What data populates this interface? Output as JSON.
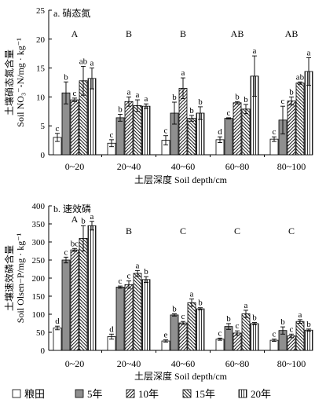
{
  "legend": [
    "粮田",
    "5年",
    "10年",
    "15年",
    "20年"
  ],
  "chart_data": [
    {
      "type": "bar",
      "title": "a. 硝态氮",
      "xlabel": "土层深度 Soil depth/cm",
      "ylabel": [
        "土壤硝态氮含量",
        "Soil NO₃⁻-N/mg · kg⁻¹"
      ],
      "categories": [
        "0~20",
        "20~40",
        "40~60",
        "60~80",
        "80~100"
      ],
      "ylim": [
        0,
        25
      ],
      "yticks": [
        0,
        5,
        10,
        15,
        20,
        25
      ],
      "grid": false,
      "legend_position": "bottom",
      "group_letters": [
        "A",
        "B",
        "B",
        "AB",
        "AB"
      ],
      "series": [
        {
          "name": "粮田",
          "color": "#ffffff",
          "pattern": "none",
          "values": [
            3.0,
            2.0,
            2.5,
            2.6,
            2.7
          ],
          "errors": [
            0.7,
            0.6,
            0.8,
            0.5,
            0.4
          ],
          "letters": [
            "c",
            "c",
            "c",
            "d",
            "c"
          ]
        },
        {
          "name": "5年",
          "color": "#8f8f8f",
          "pattern": "none",
          "values": [
            10.7,
            6.4,
            7.2,
            6.3,
            6.0
          ],
          "errors": [
            1.9,
            0.6,
            1.9,
            0.1,
            2.4
          ],
          "letters": [
            "b",
            "b",
            "b",
            "c",
            "c"
          ]
        },
        {
          "name": "10年",
          "color": "#ffffff",
          "pattern": "hatch-forward",
          "values": [
            9.5,
            9.2,
            11.5,
            9.0,
            9.3
          ],
          "errors": [
            0.3,
            0.8,
            1.8,
            0.2,
            0.7
          ],
          "letters": [
            "c",
            "a",
            "a",
            "b",
            "b"
          ]
        },
        {
          "name": "15年",
          "color": "#ffffff",
          "pattern": "hatch-backward",
          "values": [
            12.8,
            8.5,
            6.3,
            7.9,
            12.4
          ],
          "errors": [
            2.5,
            1.0,
            0.5,
            0.8,
            0.2
          ],
          "letters": [
            "ab",
            "a",
            "b",
            "b",
            "ab"
          ]
        },
        {
          "name": "20年",
          "color": "#ffffff",
          "pattern": "vertical-lines",
          "values": [
            13.2,
            8.4,
            7.2,
            13.6,
            14.4
          ],
          "errors": [
            1.8,
            0.4,
            1.1,
            3.5,
            2.4
          ],
          "letters": [
            "a",
            "a",
            "b",
            "a",
            "a"
          ]
        }
      ]
    },
    {
      "type": "bar",
      "title": "b. 速效磷",
      "xlabel": "土层深度 Soil depth/cm",
      "ylabel": [
        "土壤速效磷含量",
        "Soil Olsen−P/mg · kg⁻¹"
      ],
      "categories": [
        "0~20",
        "20~40",
        "40~60",
        "60~80",
        "80~100"
      ],
      "ylim": [
        0,
        400
      ],
      "yticks": [
        0,
        50,
        100,
        150,
        200,
        250,
        300,
        350,
        400
      ],
      "grid": false,
      "legend_position": "bottom",
      "group_letters": [
        "A",
        "B",
        "C",
        "C",
        "C"
      ],
      "series": [
        {
          "name": "粮田",
          "color": "#ffffff",
          "pattern": "none",
          "values": [
            62,
            38,
            26,
            31,
            28
          ],
          "errors": [
            5,
            7,
            3,
            3,
            3
          ],
          "letters": [
            "d",
            "d",
            "e",
            "c",
            "c"
          ]
        },
        {
          "name": "5年",
          "color": "#8f8f8f",
          "pattern": "none",
          "values": [
            250,
            175,
            98,
            66,
            55
          ],
          "errors": [
            8,
            3,
            3,
            8,
            10
          ],
          "letters": [
            "c",
            "c",
            "b",
            "b",
            "b"
          ]
        },
        {
          "name": "10年",
          "color": "#ffffff",
          "pattern": "hatch-forward",
          "values": [
            278,
            182,
            76,
            48,
            40
          ],
          "errors": [
            4,
            10,
            4,
            6,
            5
          ],
          "letters": [
            "bc",
            "c",
            "c",
            "c",
            "c"
          ]
        },
        {
          "name": "15年",
          "color": "#ffffff",
          "pattern": "hatch-backward",
          "values": [
            310,
            213,
            132,
            101,
            80
          ],
          "errors": [
            35,
            8,
            10,
            10,
            5
          ],
          "letters": [
            "b",
            "a",
            "a",
            "a",
            "a"
          ]
        },
        {
          "name": "20年",
          "color": "#ffffff",
          "pattern": "vertical-lines",
          "values": [
            345,
            196,
            115,
            74,
            56
          ],
          "errors": [
            12,
            8,
            3,
            3,
            3
          ],
          "letters": [
            "a",
            "b",
            "b",
            "b",
            "b"
          ]
        }
      ]
    }
  ]
}
